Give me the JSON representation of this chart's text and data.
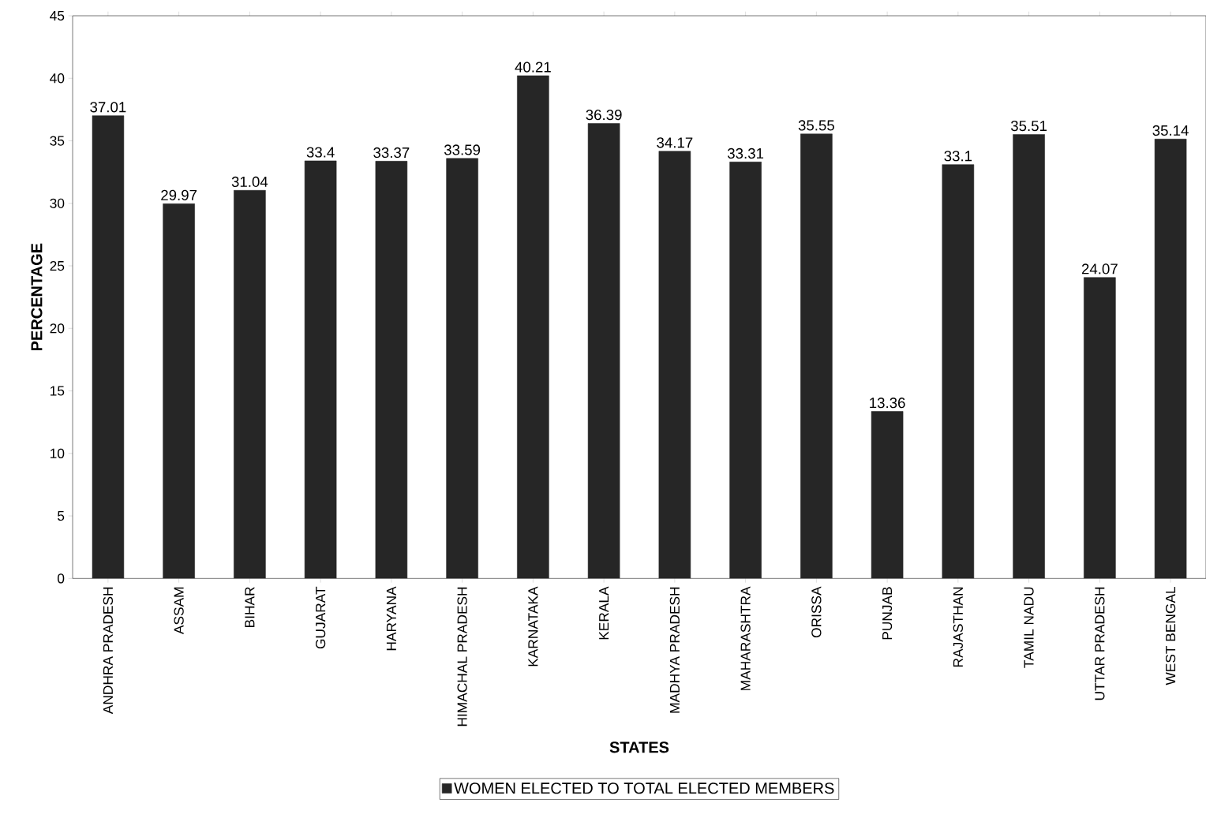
{
  "chart_data": {
    "type": "bar",
    "xlabel": "STATES",
    "ylabel": "PERCENTAGE",
    "categories": [
      "ANDHRA PRADESH",
      "ASSAM",
      "BIHAR",
      "GUJARAT",
      "HARYANA",
      "HIMACHAL PRADESH",
      "KARNATAKA",
      "KERALA",
      "MADHYA PRADESH",
      "MAHARASHTRA",
      "ORISSA",
      "PUNJAB",
      "RAJASTHAN",
      "TAMIL NADU",
      "UTTAR PRADESH",
      "WEST BENGAL"
    ],
    "series": [
      {
        "name": "WOMEN ELECTED TO TOTAL ELECTED MEMBERS",
        "color": "#262626",
        "values": [
          37.01,
          29.97,
          31.04,
          33.4,
          33.37,
          33.59,
          40.21,
          36.39,
          34.17,
          33.31,
          35.55,
          13.36,
          33.1,
          35.51,
          24.07,
          35.14
        ]
      }
    ],
    "ylim": [
      0,
      45
    ],
    "yticks": [
      0,
      5,
      10,
      15,
      20,
      25,
      30,
      35,
      40,
      45
    ],
    "data_labels": true,
    "grid": false,
    "legend": "bottom"
  }
}
